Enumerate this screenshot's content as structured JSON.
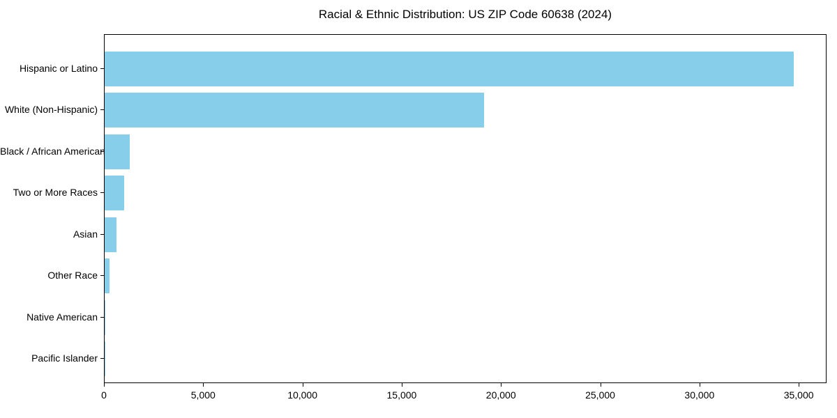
{
  "title": "Racial & Ethnic Distribution: US ZIP Code 60638 (2024)",
  "chart_data": {
    "type": "bar",
    "orientation": "horizontal",
    "title": "Racial & Ethnic Distribution: US ZIP Code 60638 (2024)",
    "xlabel": "",
    "ylabel": "",
    "categories": [
      "Hispanic or Latino",
      "White (Non-Hispanic)",
      "Black / African American",
      "Two or More Races",
      "Asian",
      "Other Race",
      "Native American",
      "Pacific Islander"
    ],
    "values": [
      34700,
      19100,
      1250,
      970,
      610,
      250,
      40,
      10
    ],
    "xlim": [
      0,
      36400
    ],
    "x_ticks": [
      0,
      5000,
      10000,
      15000,
      20000,
      25000,
      30000,
      35000
    ],
    "x_tick_labels": [
      "0",
      "5,000",
      "10,000",
      "15,000",
      "20,000",
      "25,000",
      "30,000",
      "35,000"
    ],
    "bar_color": "#87CEEB",
    "background_color": "#ffffff",
    "axis_color": "#000000",
    "grid": false,
    "legend": false
  }
}
